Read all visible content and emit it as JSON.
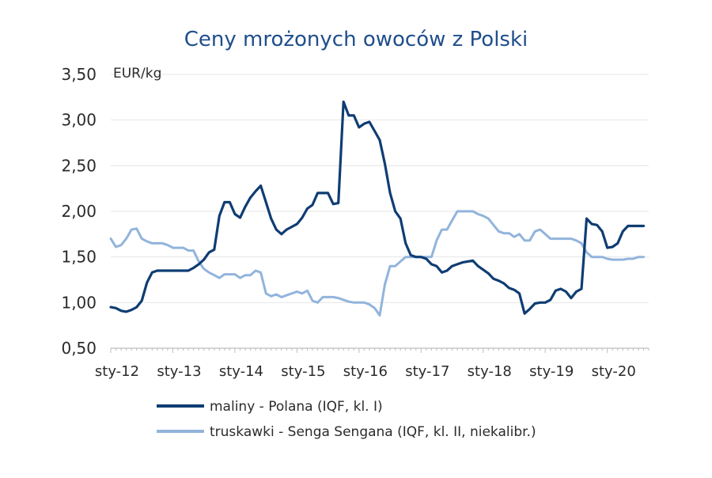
{
  "chart_data": {
    "type": "line",
    "title": "Ceny mrożonych owoców z Polski",
    "ylabel": "EUR/kg",
    "xlabel": "",
    "ylim": [
      0.5,
      3.5
    ],
    "y_ticks": [
      "0,50",
      "1,00",
      "1,50",
      "2,00",
      "2,50",
      "3,00",
      "3,50"
    ],
    "y_tick_values": [
      0.5,
      1.0,
      1.5,
      2.0,
      2.5,
      3.0,
      3.5
    ],
    "x_ticks": [
      "sty-12",
      "sty-13",
      "sty-14",
      "sty-15",
      "sty-16",
      "sty-17",
      "sty-18",
      "sty-19",
      "sty-20"
    ],
    "x_tick_values": [
      "2012-01",
      "2013-01",
      "2014-01",
      "2015-01",
      "2016-01",
      "2017-01",
      "2018-01",
      "2019-01",
      "2020-01"
    ],
    "xlim": [
      "2012-01",
      "2020-09"
    ],
    "grid": "horizontal",
    "legend_position": "bottom",
    "colors": {
      "maliny": "#0f3d73",
      "truskawki": "#92b4dc",
      "title": "#1f4e8c"
    },
    "series": [
      {
        "name": "maliny - Polana (IQF, kl. I)",
        "color": "#0f3d73",
        "x": [
          "2012-01",
          "2012-02",
          "2012-03",
          "2012-04",
          "2012-05",
          "2012-06",
          "2012-07",
          "2012-08",
          "2012-09",
          "2012-10",
          "2012-11",
          "2012-12",
          "2013-01",
          "2013-02",
          "2013-03",
          "2013-04",
          "2013-05",
          "2013-06",
          "2013-07",
          "2013-08",
          "2013-09",
          "2013-10",
          "2013-11",
          "2013-12",
          "2014-01",
          "2014-02",
          "2014-03",
          "2014-04",
          "2014-05",
          "2014-06",
          "2014-07",
          "2014-08",
          "2014-09",
          "2014-10",
          "2014-11",
          "2014-12",
          "2015-01",
          "2015-02",
          "2015-03",
          "2015-04",
          "2015-05",
          "2015-06",
          "2015-07",
          "2015-08",
          "2015-09",
          "2015-10",
          "2015-11",
          "2015-12",
          "2016-01",
          "2016-02",
          "2016-03",
          "2016-04",
          "2016-05",
          "2016-06",
          "2016-07",
          "2016-08",
          "2016-09",
          "2016-10",
          "2016-11",
          "2016-12",
          "2017-01",
          "2017-02",
          "2017-03",
          "2017-04",
          "2017-05",
          "2017-06",
          "2017-07",
          "2017-08",
          "2017-09",
          "2017-10",
          "2017-11",
          "2017-12",
          "2018-01",
          "2018-02",
          "2018-03",
          "2018-04",
          "2018-05",
          "2018-06",
          "2018-07",
          "2018-08",
          "2018-09",
          "2018-10",
          "2018-11",
          "2018-12",
          "2019-01",
          "2019-02",
          "2019-03",
          "2019-04",
          "2019-05",
          "2019-06",
          "2019-07",
          "2019-08",
          "2019-09",
          "2019-10",
          "2019-11",
          "2019-12",
          "2020-01",
          "2020-02",
          "2020-03",
          "2020-04",
          "2020-05",
          "2020-06",
          "2020-07",
          "2020-08"
        ],
        "values": [
          0.95,
          0.94,
          0.91,
          0.9,
          0.92,
          0.95,
          1.02,
          1.22,
          1.33,
          1.35,
          1.35,
          1.35,
          1.35,
          1.35,
          1.35,
          1.35,
          1.38,
          1.42,
          1.47,
          1.55,
          1.58,
          1.95,
          2.1,
          2.1,
          1.97,
          1.93,
          2.05,
          2.15,
          2.22,
          2.28,
          2.1,
          1.92,
          1.8,
          1.75,
          1.8,
          1.83,
          1.86,
          1.93,
          2.03,
          2.07,
          2.2,
          2.2,
          2.2,
          2.08,
          2.09,
          3.2,
          3.05,
          3.05,
          2.92,
          2.96,
          2.98,
          2.88,
          2.78,
          2.52,
          2.2,
          2.0,
          1.92,
          1.65,
          1.52,
          1.5,
          1.5,
          1.48,
          1.42,
          1.4,
          1.33,
          1.35,
          1.4,
          1.42,
          1.44,
          1.45,
          1.46,
          1.4,
          1.36,
          1.32,
          1.26,
          1.24,
          1.21,
          1.16,
          1.14,
          1.1,
          0.88,
          0.93,
          0.99,
          1.0,
          1.0,
          1.03,
          1.13,
          1.15,
          1.12,
          1.05,
          1.12,
          1.15,
          1.92,
          1.86,
          1.85,
          1.78,
          1.6,
          1.61,
          1.65,
          1.78,
          1.84,
          1.84,
          1.84,
          1.84
        ]
      },
      {
        "name": "truskawki - Senga Sengana (IQF, kl. II, niekalibr.)",
        "color": "#92b4dc",
        "x": [
          "2012-01",
          "2012-02",
          "2012-03",
          "2012-04",
          "2012-05",
          "2012-06",
          "2012-07",
          "2012-08",
          "2012-09",
          "2012-10",
          "2012-11",
          "2012-12",
          "2013-01",
          "2013-02",
          "2013-03",
          "2013-04",
          "2013-05",
          "2013-06",
          "2013-07",
          "2013-08",
          "2013-09",
          "2013-10",
          "2013-11",
          "2013-12",
          "2014-01",
          "2014-02",
          "2014-03",
          "2014-04",
          "2014-05",
          "2014-06",
          "2014-07",
          "2014-08",
          "2014-09",
          "2014-10",
          "2014-11",
          "2014-12",
          "2015-01",
          "2015-02",
          "2015-03",
          "2015-04",
          "2015-05",
          "2015-06",
          "2015-07",
          "2015-08",
          "2015-09",
          "2015-10",
          "2015-11",
          "2015-12",
          "2016-01",
          "2016-02",
          "2016-03",
          "2016-04",
          "2016-05",
          "2016-06",
          "2016-07",
          "2016-08",
          "2016-09",
          "2016-10",
          "2016-11",
          "2016-12",
          "2017-01",
          "2017-02",
          "2017-03",
          "2017-04",
          "2017-05",
          "2017-06",
          "2017-07",
          "2017-08",
          "2017-09",
          "2017-10",
          "2017-11",
          "2017-12",
          "2018-01",
          "2018-02",
          "2018-03",
          "2018-04",
          "2018-05",
          "2018-06",
          "2018-07",
          "2018-08",
          "2018-09",
          "2018-10",
          "2018-11",
          "2018-12",
          "2019-01",
          "2019-02",
          "2019-03",
          "2019-04",
          "2019-05",
          "2019-06",
          "2019-07",
          "2019-08",
          "2019-09",
          "2019-10",
          "2019-11",
          "2019-12",
          "2020-01",
          "2020-02",
          "2020-03",
          "2020-04",
          "2020-05",
          "2020-06",
          "2020-07",
          "2020-08"
        ],
        "values": [
          1.7,
          1.61,
          1.63,
          1.7,
          1.8,
          1.81,
          1.7,
          1.67,
          1.65,
          1.65,
          1.65,
          1.63,
          1.6,
          1.6,
          1.6,
          1.57,
          1.57,
          1.45,
          1.37,
          1.33,
          1.3,
          1.27,
          1.31,
          1.31,
          1.31,
          1.27,
          1.3,
          1.3,
          1.35,
          1.33,
          1.1,
          1.07,
          1.09,
          1.06,
          1.08,
          1.1,
          1.12,
          1.1,
          1.13,
          1.02,
          1.0,
          1.06,
          1.06,
          1.06,
          1.05,
          1.03,
          1.01,
          1.0,
          1.0,
          1.0,
          0.98,
          0.94,
          0.86,
          1.2,
          1.4,
          1.4,
          1.45,
          1.5,
          1.5,
          1.5,
          1.5,
          1.5,
          1.5,
          1.68,
          1.8,
          1.8,
          1.9,
          2.0,
          2.0,
          2.0,
          2.0,
          1.97,
          1.95,
          1.92,
          1.85,
          1.78,
          1.76,
          1.76,
          1.72,
          1.75,
          1.68,
          1.68,
          1.78,
          1.8,
          1.75,
          1.7,
          1.7,
          1.7,
          1.7,
          1.7,
          1.68,
          1.65,
          1.55,
          1.5,
          1.5,
          1.5,
          1.48,
          1.47,
          1.47,
          1.47,
          1.48,
          1.48,
          1.5,
          1.5
        ]
      }
    ]
  }
}
